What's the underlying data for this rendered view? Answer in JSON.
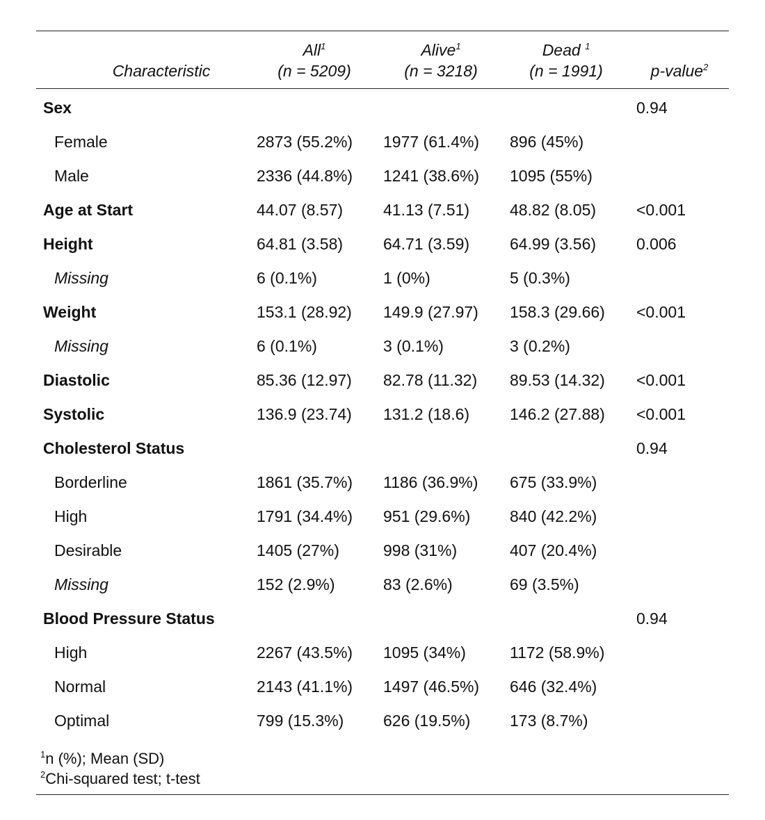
{
  "header": {
    "characteristic": "Characteristic",
    "all_label": "All",
    "all_sup": "1",
    "all_n": "(n = 5209)",
    "alive_label": "Alive",
    "alive_sup": "1",
    "alive_n": "(n = 3218)",
    "dead_label": "Dead ",
    "dead_sup": "1",
    "dead_n": "(n = 1991)",
    "p_label": "p-value",
    "p_sup": "2"
  },
  "rows": [
    {
      "label": "Sex",
      "all": "",
      "alive": "",
      "dead": "",
      "p": "0.94"
    },
    {
      "label": "Female",
      "all": "2873 (55.2%)",
      "alive": "1977 (61.4%)",
      "dead": "896 (45%)",
      "p": ""
    },
    {
      "label": "Male",
      "all": "2336 (44.8%)",
      "alive": "1241 (38.6%)",
      "dead": "1095 (55%)",
      "p": ""
    },
    {
      "label": "Age at Start",
      "all": "44.07 (8.57)",
      "alive": "41.13 (7.51)",
      "dead": "48.82 (8.05)",
      "p": "<0.001"
    },
    {
      "label": "Height",
      "all": "64.81 (3.58)",
      "alive": "64.71 (3.59)",
      "dead": "64.99 (3.56)",
      "p": "0.006"
    },
    {
      "label": "Missing",
      "all": "6 (0.1%)",
      "alive": "1 (0%)",
      "dead": "5 (0.3%)",
      "p": ""
    },
    {
      "label": "Weight",
      "all": "153.1 (28.92)",
      "alive": "149.9 (27.97)",
      "dead": "158.3 (29.66)",
      "p": "<0.001"
    },
    {
      "label": "Missing",
      "all": "6 (0.1%)",
      "alive": "3 (0.1%)",
      "dead": "3 (0.2%)",
      "p": ""
    },
    {
      "label": "Diastolic",
      "all": "85.36 (12.97)",
      "alive": "82.78 (11.32)",
      "dead": "89.53 (14.32)",
      "p": "<0.001"
    },
    {
      "label": "Systolic",
      "all": "136.9 (23.74)",
      "alive": "131.2 (18.6)",
      "dead": "146.2 (27.88)",
      "p": "<0.001"
    },
    {
      "label": "Cholesterol Status",
      "all": "",
      "alive": "",
      "dead": "",
      "p": "0.94"
    },
    {
      "label": "Borderline",
      "all": "1861 (35.7%)",
      "alive": "1186 (36.9%)",
      "dead": "675 (33.9%)",
      "p": ""
    },
    {
      "label": "High",
      "all": "1791 (34.4%)",
      "alive": "951 (29.6%)",
      "dead": "840 (42.2%)",
      "p": ""
    },
    {
      "label": "Desirable",
      "all": "1405 (27%)",
      "alive": "998 (31%)",
      "dead": "407 (20.4%)",
      "p": ""
    },
    {
      "label": "Missing",
      "all": "152 (2.9%)",
      "alive": "83 (2.6%)",
      "dead": "69 (3.5%)",
      "p": ""
    },
    {
      "label": "Blood Pressure Status",
      "all": "",
      "alive": "",
      "dead": "",
      "p": "0.94"
    },
    {
      "label": "High",
      "all": "2267 (43.5%)",
      "alive": "1095 (34%)",
      "dead": "1172 (58.9%)",
      "p": ""
    },
    {
      "label": "Normal",
      "all": "2143 (41.1%)",
      "alive": "1497 (46.5%)",
      "dead": "646 (32.4%)",
      "p": ""
    },
    {
      "label": "Optimal",
      "all": "799 (15.3%)",
      "alive": "626 (19.5%)",
      "dead": "173 (8.7%)",
      "p": ""
    }
  ],
  "footnotes": [
    {
      "mark": "1",
      "text": "n (%); Mean (SD)"
    },
    {
      "mark": "2",
      "text": "Chi-squared test; t-test"
    }
  ]
}
